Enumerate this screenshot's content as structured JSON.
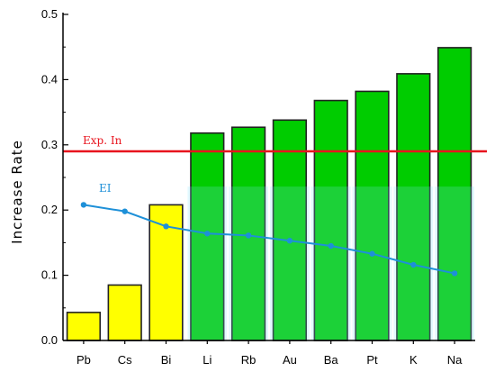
{
  "chart_data": {
    "type": "bar",
    "title": "",
    "xlabel": "",
    "ylabel": "Increase Rate",
    "ylim": [
      0,
      0.5
    ],
    "yticks": [
      "0.0",
      "0.1",
      "0.2",
      "0.3",
      "0.4",
      "0.5"
    ],
    "grid": false,
    "categories": [
      "Pb",
      "Cs",
      "Bi",
      "Li",
      "Rb",
      "Au",
      "Ba",
      "Pt",
      "K",
      "Na"
    ],
    "values": [
      0.043,
      0.085,
      0.208,
      0.318,
      0.327,
      0.338,
      0.368,
      0.382,
      0.409,
      0.449
    ],
    "bar_colors": [
      "#ffff00",
      "#ffff00",
      "#ffff00",
      "#00cc00",
      "#00cc00",
      "#00cc00",
      "#00cc00",
      "#00cc00",
      "#00cc00",
      "#00cc00"
    ],
    "series_line": {
      "name": "EI",
      "color": "#1e90d8",
      "values": [
        0.208,
        0.198,
        0.175,
        0.164,
        0.161,
        0.153,
        0.145,
        0.133,
        0.116,
        0.103
      ]
    },
    "reference_line": {
      "label": "Exp. In",
      "value": 0.29,
      "color": "#e8141e"
    }
  }
}
